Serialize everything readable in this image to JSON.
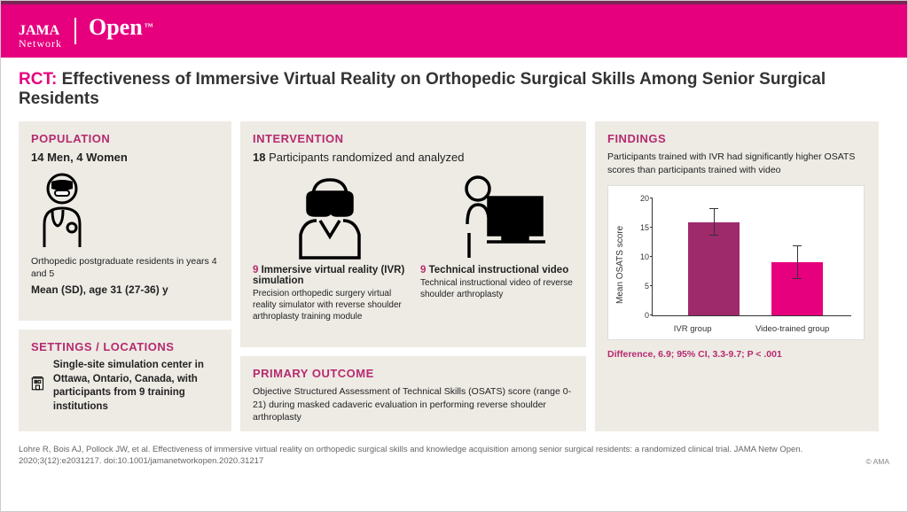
{
  "brand": {
    "jama": "JAMA",
    "network": "Network",
    "open": "Open",
    "tm": "™"
  },
  "title": {
    "prefix": "RCT:",
    "text": "Effectiveness of Immersive Virtual Reality on Orthopedic Surgical Skills Among Senior Surgical Residents"
  },
  "population": {
    "head": "POPULATION",
    "sub": "14 Men, 4 Women",
    "desc": "Orthopedic postgraduate residents in years 4 and 5",
    "mean": "Mean (SD), age 31 (27-36) y"
  },
  "settings": {
    "head": "SETTINGS / LOCATIONS",
    "text": "Single-site simulation center in Ottawa, Ontario, Canada, with participants from 9 training institutions"
  },
  "intervention": {
    "head": "INTERVENTION",
    "sub_bold": "18",
    "sub_rest": " Participants randomized and analyzed",
    "ivr": {
      "num": "9",
      "title": " Immersive virtual reality (IVR) simulation",
      "desc": "Precision orthopedic surgery virtual reality simulator with reverse shoulder arthroplasty training module"
    },
    "video": {
      "num": "9",
      "title": " Technical instructional video",
      "desc": "Technical instructional video of reverse shoulder arthroplasty"
    }
  },
  "primary": {
    "head": "PRIMARY OUTCOME",
    "text": "Objective Structured Assessment of Technical Skills (OSATS) score (range 0-21) during masked cadaveric evaluation in performing reverse shoulder arthroplasty"
  },
  "findings": {
    "head": "FINDINGS",
    "text": "Participants trained with IVR had significantly higher OSATS scores than participants trained with video",
    "diff": "Difference, 6.9; 95% CI, 3.3-9.7; P < .001"
  },
  "chart": {
    "ylabel": "Mean OSATS score",
    "ylim_max": 20,
    "ytick_step": 5,
    "yticks": [
      0,
      5,
      10,
      15,
      20
    ],
    "categories": [
      "IVR group",
      "Video-trained group"
    ],
    "values": [
      16.0,
      9.1
    ],
    "err_up": [
      2.3,
      2.8
    ],
    "err_down": [
      2.3,
      2.8
    ],
    "bar_colors": [
      "#9e2a6b",
      "#e6007e"
    ],
    "background_color": "#ffffff",
    "axis_color": "#333333"
  },
  "citation": "Lohre R, Bois AJ, Pollock JW, et al. Effectiveness of immersive virtual reality on orthopedic surgical skills and knowledge acquisition among senior surgical residents: a randomized clinical trial. JAMA Netw Open. 2020;3(12):e2031217. doi:10.1001/jamanetworkopen.2020.31217",
  "ama": "© AMA"
}
